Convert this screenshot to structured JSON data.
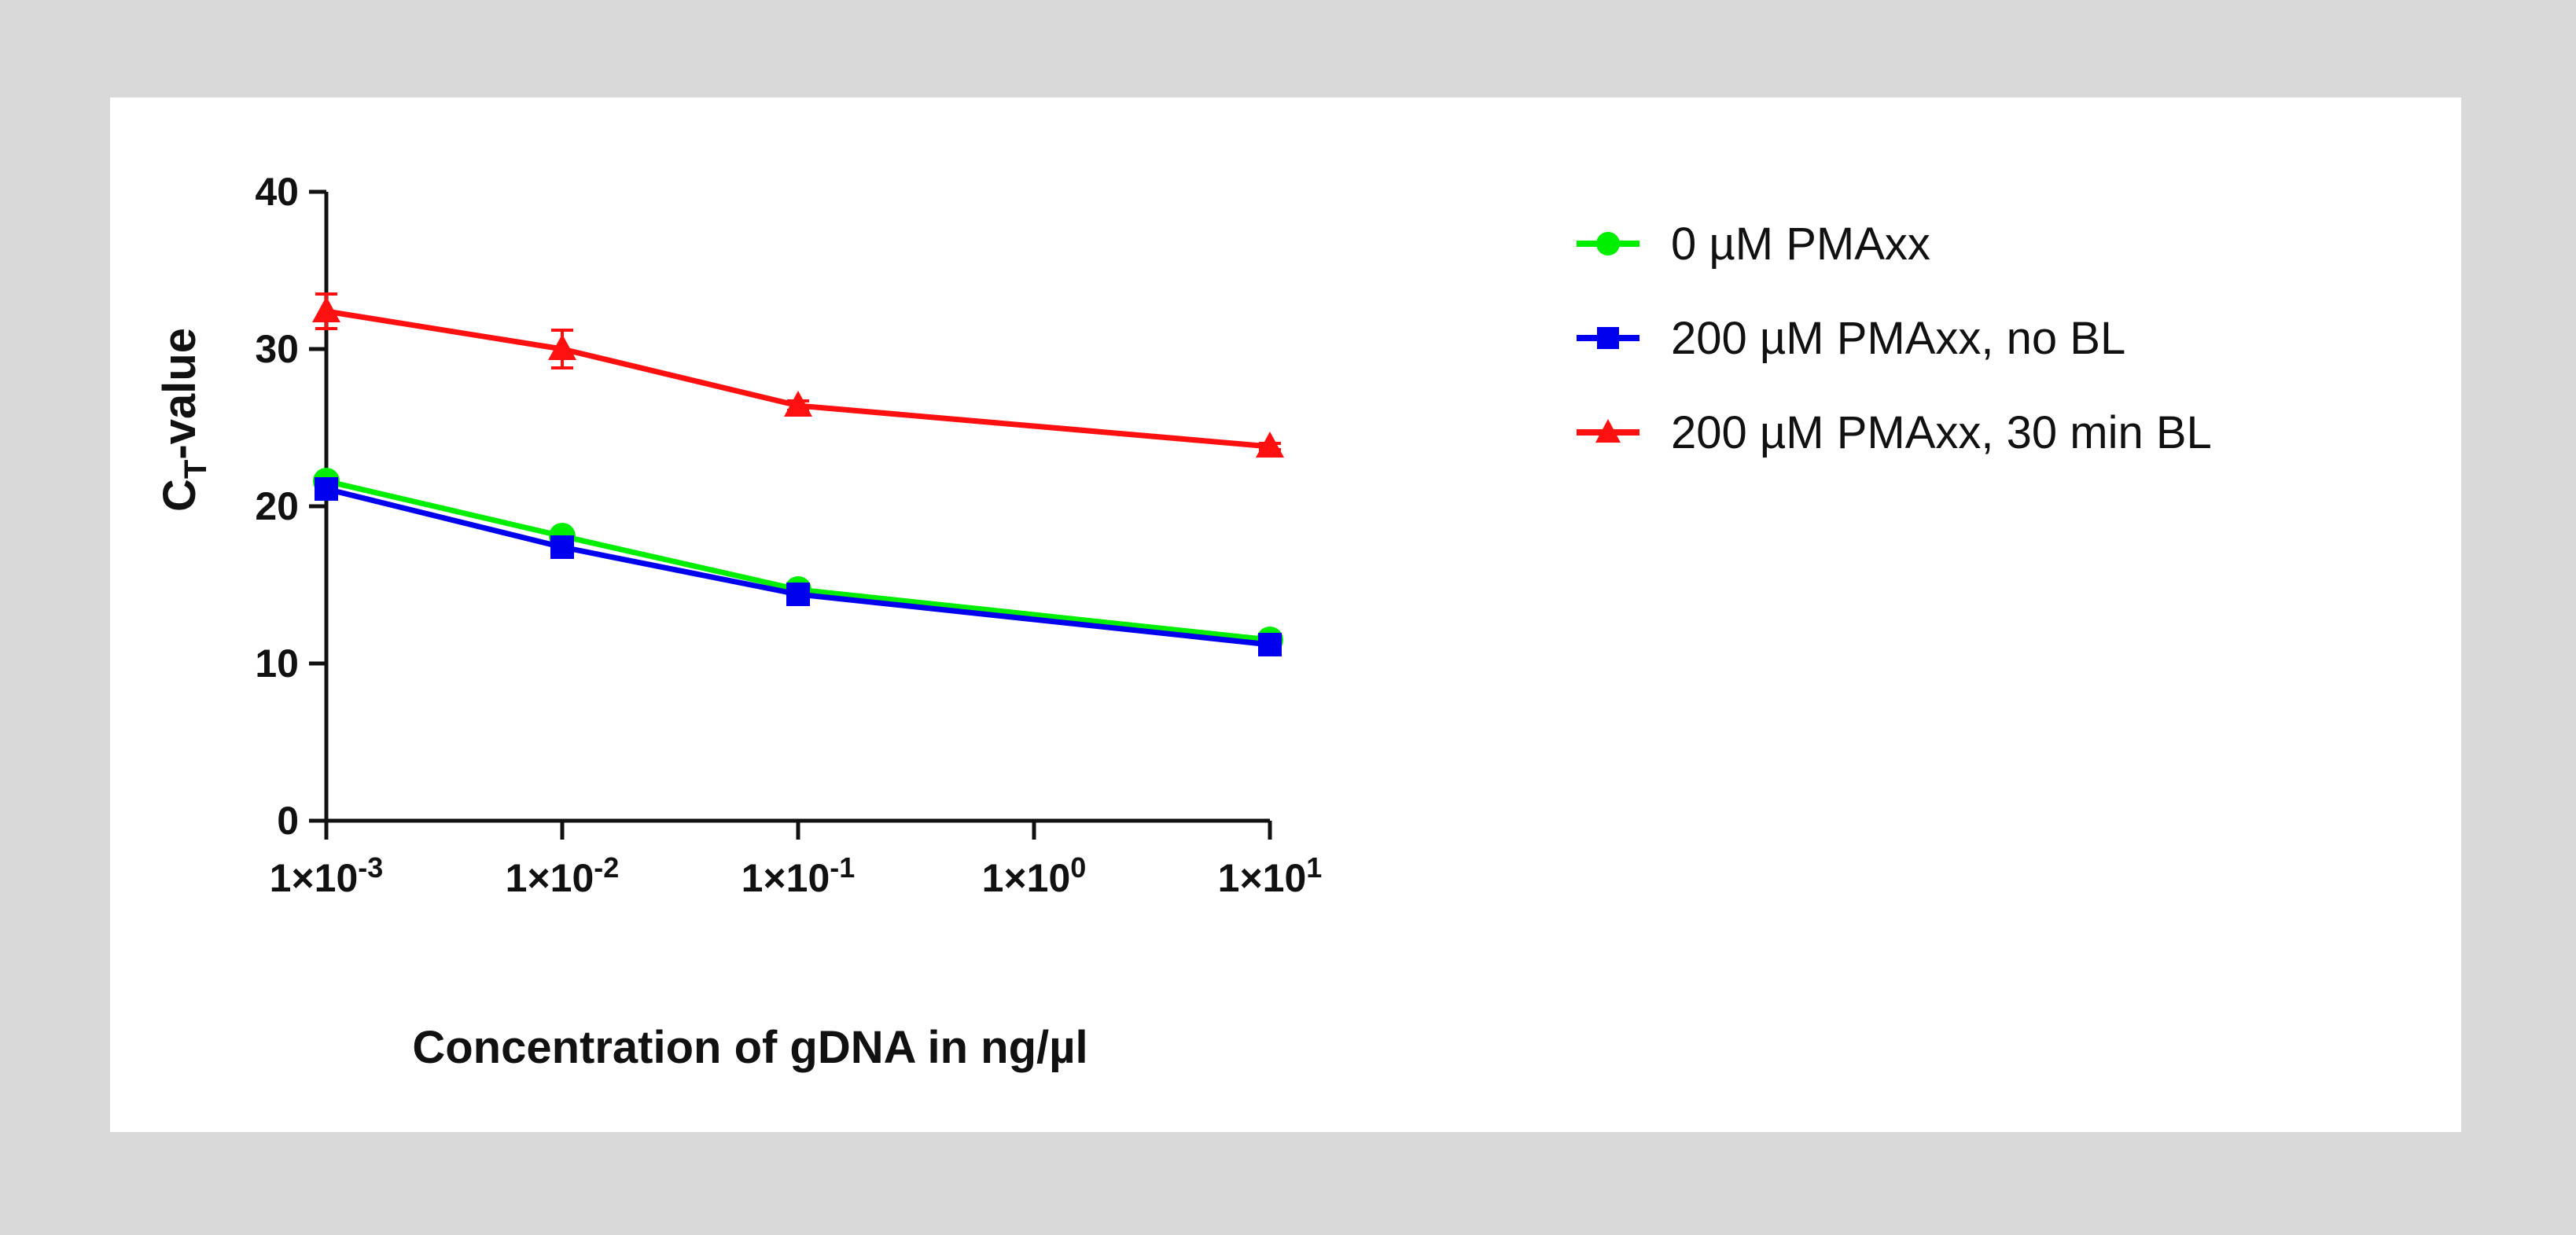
{
  "chart_data": {
    "type": "line",
    "title": "",
    "xlabel": "Concentration of gDNA in ng/µl",
    "ylabel": {
      "main": "C",
      "sub": "T",
      "rest": "-value"
    },
    "x_scale": "log",
    "x": [
      0.001,
      0.01,
      0.1,
      10
    ],
    "x_ticks": [
      {
        "value": 0.001,
        "mantissa": "1×10",
        "exp": "-3"
      },
      {
        "value": 0.01,
        "mantissa": "1×10",
        "exp": "-2"
      },
      {
        "value": 0.1,
        "mantissa": "1×10",
        "exp": "-1"
      },
      {
        "value": 1,
        "mantissa": "1×10",
        "exp": "0"
      },
      {
        "value": 10,
        "mantissa": "1×10",
        "exp": "1"
      }
    ],
    "y_ticks": [
      "0",
      "10",
      "20",
      "30",
      "40"
    ],
    "xlim": [
      0.001,
      10
    ],
    "ylim": [
      0,
      40
    ],
    "legend_position": "right",
    "series": [
      {
        "name": "0 µM PMAxx",
        "color": "#00ee00",
        "marker": "circle",
        "values": [
          21.6,
          18.1,
          14.7,
          11.5
        ],
        "errors": [
          0.3,
          0.3,
          0.2,
          0.2
        ]
      },
      {
        "name": "200 µM PMAxx, no BL",
        "color": "#0000ee",
        "marker": "square",
        "values": [
          21.1,
          17.4,
          14.4,
          11.2
        ],
        "errors": [
          0.3,
          0.3,
          0.2,
          0.2
        ]
      },
      {
        "name": "200 µM PMAxx, 30 min BL",
        "color": "#ff1010",
        "marker": "triangle",
        "values": [
          32.4,
          30.0,
          26.4,
          23.8
        ],
        "errors": [
          1.1,
          1.2,
          0.3,
          0.2
        ]
      }
    ]
  }
}
